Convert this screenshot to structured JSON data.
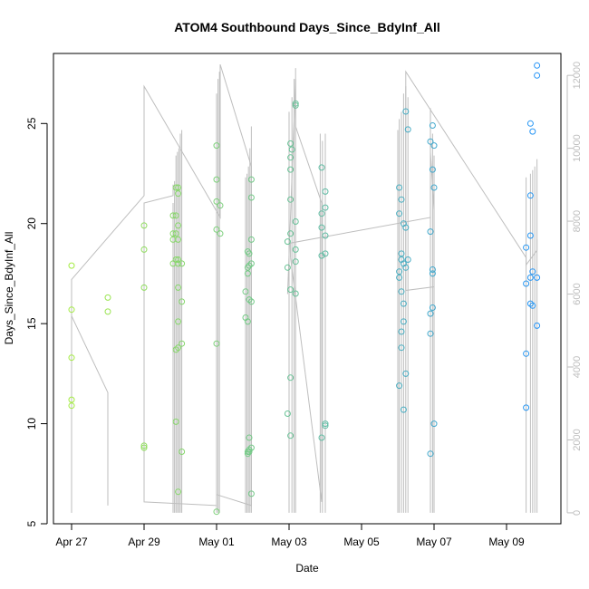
{
  "chart_data": {
    "type": "scatter",
    "title": "ATOM4 Southbound Days_Since_BdyInf_All",
    "xlabel": "Date",
    "ylabel": "Days_Since_BdyInf_All",
    "xlim": [
      "2017-04-26 12:00",
      "2017-05-10 12:00"
    ],
    "ylim": [
      5.0,
      28.5
    ],
    "y2lim": [
      -300,
      12600
    ],
    "x_ticks": [
      {
        "date": "2017-04-27",
        "label": "Apr 27"
      },
      {
        "date": "2017-04-29",
        "label": "Apr 29"
      },
      {
        "date": "2017-05-01",
        "label": "May 01"
      },
      {
        "date": "2017-05-03",
        "label": "May 03"
      },
      {
        "date": "2017-05-05",
        "label": "May 05"
      },
      {
        "date": "2017-05-07",
        "label": "May 07"
      },
      {
        "date": "2017-05-09",
        "label": "May 09"
      }
    ],
    "y_ticks": [
      5,
      10,
      15,
      20,
      25
    ],
    "y2_ticks": [
      0,
      2000,
      4000,
      6000,
      8000,
      10000,
      12000
    ],
    "grid": false,
    "legend": "none",
    "colors": {
      "points_start": "#a8ee3a",
      "points_end": "#1e90ff",
      "secondary_line": "#bebebe",
      "axis": "#000000",
      "secondary_axis": "#bebebe"
    },
    "points": [
      {
        "x": "2017-04-27 00:00",
        "y": 17.9
      },
      {
        "x": "2017-04-27 00:00",
        "y": 15.7
      },
      {
        "x": "2017-04-27 00:00",
        "y": 13.3
      },
      {
        "x": "2017-04-27 00:00",
        "y": 11.2
      },
      {
        "x": "2017-04-27 00:00",
        "y": 10.9
      },
      {
        "x": "2017-04-28 00:00",
        "y": 16.3
      },
      {
        "x": "2017-04-28 00:00",
        "y": 15.6
      },
      {
        "x": "2017-04-29 00:00",
        "y": 19.9
      },
      {
        "x": "2017-04-29 00:00",
        "y": 18.7
      },
      {
        "x": "2017-04-29 00:00",
        "y": 16.8
      },
      {
        "x": "2017-04-29 00:00",
        "y": 8.9
      },
      {
        "x": "2017-04-29 00:00",
        "y": 8.8
      },
      {
        "x": "2017-04-29 19:12",
        "y": 20.4
      },
      {
        "x": "2017-04-29 19:12",
        "y": 19.5
      },
      {
        "x": "2017-04-29 19:12",
        "y": 19.2
      },
      {
        "x": "2017-04-29 19:12",
        "y": 18.0
      },
      {
        "x": "2017-04-29 21:07",
        "y": 21.8
      },
      {
        "x": "2017-04-29 21:07",
        "y": 20.4
      },
      {
        "x": "2017-04-29 21:07",
        "y": 19.5
      },
      {
        "x": "2017-04-29 21:07",
        "y": 18.2
      },
      {
        "x": "2017-04-29 21:07",
        "y": 13.7
      },
      {
        "x": "2017-04-29 21:07",
        "y": 10.1
      },
      {
        "x": "2017-04-29 22:33",
        "y": 21.8
      },
      {
        "x": "2017-04-29 22:33",
        "y": 21.5
      },
      {
        "x": "2017-04-29 22:33",
        "y": 19.9
      },
      {
        "x": "2017-04-29 22:33",
        "y": 19.2
      },
      {
        "x": "2017-04-29 22:33",
        "y": 18.2
      },
      {
        "x": "2017-04-29 22:33",
        "y": 18.0
      },
      {
        "x": "2017-04-29 22:33",
        "y": 16.8
      },
      {
        "x": "2017-04-29 22:33",
        "y": 15.1
      },
      {
        "x": "2017-04-29 22:33",
        "y": 13.8
      },
      {
        "x": "2017-04-29 22:33",
        "y": 6.6
      },
      {
        "x": "2017-04-30 00:58",
        "y": 18.0
      },
      {
        "x": "2017-04-30 00:58",
        "y": 16.1
      },
      {
        "x": "2017-04-30 00:58",
        "y": 14.0
      },
      {
        "x": "2017-04-30 00:58",
        "y": 8.6
      },
      {
        "x": "2017-05-01 00:00",
        "y": 23.9
      },
      {
        "x": "2017-05-01 00:00",
        "y": 22.2
      },
      {
        "x": "2017-05-01 00:00",
        "y": 21.1
      },
      {
        "x": "2017-05-01 00:00",
        "y": 19.7
      },
      {
        "x": "2017-05-01 00:00",
        "y": 14.0
      },
      {
        "x": "2017-05-01 00:00",
        "y": 5.6
      },
      {
        "x": "2017-05-01 02:24",
        "y": 20.9
      },
      {
        "x": "2017-05-01 02:24",
        "y": 19.5
      },
      {
        "x": "2017-05-01 19:12",
        "y": 16.6
      },
      {
        "x": "2017-05-01 19:12",
        "y": 15.3
      },
      {
        "x": "2017-05-01 20:38",
        "y": 18.6
      },
      {
        "x": "2017-05-01 20:38",
        "y": 17.8
      },
      {
        "x": "2017-05-01 20:38",
        "y": 17.5
      },
      {
        "x": "2017-05-01 20:38",
        "y": 15.1
      },
      {
        "x": "2017-05-01 20:38",
        "y": 8.6
      },
      {
        "x": "2017-05-01 20:38",
        "y": 8.5
      },
      {
        "x": "2017-05-01 21:36",
        "y": 18.5
      },
      {
        "x": "2017-05-01 21:36",
        "y": 17.9
      },
      {
        "x": "2017-05-01 21:36",
        "y": 16.2
      },
      {
        "x": "2017-05-01 21:36",
        "y": 9.3
      },
      {
        "x": "2017-05-01 21:36",
        "y": 8.7
      },
      {
        "x": "2017-05-01 21:36",
        "y": 8.6
      },
      {
        "x": "2017-05-01 23:02",
        "y": 22.2
      },
      {
        "x": "2017-05-01 23:02",
        "y": 21.3
      },
      {
        "x": "2017-05-01 23:02",
        "y": 19.2
      },
      {
        "x": "2017-05-01 23:02",
        "y": 18.0
      },
      {
        "x": "2017-05-01 23:02",
        "y": 16.1
      },
      {
        "x": "2017-05-01 23:02",
        "y": 8.8
      },
      {
        "x": "2017-05-01 23:02",
        "y": 6.5
      },
      {
        "x": "2017-05-02 23:02",
        "y": 19.1
      },
      {
        "x": "2017-05-02 23:02",
        "y": 17.8
      },
      {
        "x": "2017-05-02 23:02",
        "y": 10.5
      },
      {
        "x": "2017-05-03 00:58",
        "y": 24.0
      },
      {
        "x": "2017-05-03 00:58",
        "y": 23.3
      },
      {
        "x": "2017-05-03 00:58",
        "y": 22.7
      },
      {
        "x": "2017-05-03 00:58",
        "y": 21.2
      },
      {
        "x": "2017-05-03 00:58",
        "y": 19.5
      },
      {
        "x": "2017-05-03 00:58",
        "y": 16.7
      },
      {
        "x": "2017-05-03 00:58",
        "y": 12.3
      },
      {
        "x": "2017-05-03 00:58",
        "y": 9.4
      },
      {
        "x": "2017-05-03 01:55",
        "y": 23.7
      },
      {
        "x": "2017-05-03 04:19",
        "y": 26.0
      },
      {
        "x": "2017-05-03 04:19",
        "y": 25.9
      },
      {
        "x": "2017-05-03 04:19",
        "y": 20.1
      },
      {
        "x": "2017-05-03 04:19",
        "y": 18.7
      },
      {
        "x": "2017-05-03 04:19",
        "y": 18.1
      },
      {
        "x": "2017-05-03 04:19",
        "y": 16.5
      },
      {
        "x": "2017-05-03 21:36",
        "y": 22.8
      },
      {
        "x": "2017-05-03 21:36",
        "y": 20.5
      },
      {
        "x": "2017-05-03 21:36",
        "y": 19.8
      },
      {
        "x": "2017-05-03 21:36",
        "y": 18.4
      },
      {
        "x": "2017-05-03 21:36",
        "y": 9.3
      },
      {
        "x": "2017-05-04 00:00",
        "y": 21.6
      },
      {
        "x": "2017-05-04 00:00",
        "y": 20.8
      },
      {
        "x": "2017-05-04 00:00",
        "y": 19.4
      },
      {
        "x": "2017-05-04 00:00",
        "y": 18.5
      },
      {
        "x": "2017-05-04 00:00",
        "y": 10.0
      },
      {
        "x": "2017-05-04 00:00",
        "y": 9.9
      },
      {
        "x": "2017-05-06 00:58",
        "y": 21.8
      },
      {
        "x": "2017-05-06 00:58",
        "y": 20.5
      },
      {
        "x": "2017-05-06 00:58",
        "y": 17.6
      },
      {
        "x": "2017-05-06 00:58",
        "y": 17.3
      },
      {
        "x": "2017-05-06 00:58",
        "y": 11.9
      },
      {
        "x": "2017-05-06 02:24",
        "y": 21.2
      },
      {
        "x": "2017-05-06 02:24",
        "y": 18.5
      },
      {
        "x": "2017-05-06 02:24",
        "y": 18.2
      },
      {
        "x": "2017-05-06 02:24",
        "y": 16.6
      },
      {
        "x": "2017-05-06 02:24",
        "y": 14.6
      },
      {
        "x": "2017-05-06 02:24",
        "y": 13.8
      },
      {
        "x": "2017-05-06 03:50",
        "y": 20.0
      },
      {
        "x": "2017-05-06 03:50",
        "y": 18.0
      },
      {
        "x": "2017-05-06 03:50",
        "y": 16.0
      },
      {
        "x": "2017-05-06 03:50",
        "y": 15.1
      },
      {
        "x": "2017-05-06 03:50",
        "y": 10.7
      },
      {
        "x": "2017-05-06 05:17",
        "y": 25.6
      },
      {
        "x": "2017-05-06 05:17",
        "y": 19.8
      },
      {
        "x": "2017-05-06 05:17",
        "y": 17.8
      },
      {
        "x": "2017-05-06 05:17",
        "y": 12.5
      },
      {
        "x": "2017-05-06 06:43",
        "y": 24.7
      },
      {
        "x": "2017-05-06 06:43",
        "y": 18.2
      },
      {
        "x": "2017-05-06 21:36",
        "y": 24.1
      },
      {
        "x": "2017-05-06 21:36",
        "y": 19.6
      },
      {
        "x": "2017-05-06 21:36",
        "y": 15.5
      },
      {
        "x": "2017-05-06 21:36",
        "y": 14.5
      },
      {
        "x": "2017-05-06 21:36",
        "y": 8.5
      },
      {
        "x": "2017-05-06 23:02",
        "y": 24.9
      },
      {
        "x": "2017-05-06 23:02",
        "y": 22.7
      },
      {
        "x": "2017-05-06 23:02",
        "y": 17.7
      },
      {
        "x": "2017-05-06 23:02",
        "y": 17.5
      },
      {
        "x": "2017-05-06 23:02",
        "y": 15.8
      },
      {
        "x": "2017-05-07 00:00",
        "y": 23.9
      },
      {
        "x": "2017-05-07 00:00",
        "y": 21.8
      },
      {
        "x": "2017-05-07 00:00",
        "y": 10.0
      },
      {
        "x": "2017-05-09 12:58",
        "y": 18.8
      },
      {
        "x": "2017-05-09 12:58",
        "y": 17.0
      },
      {
        "x": "2017-05-09 12:58",
        "y": 13.5
      },
      {
        "x": "2017-05-09 12:58",
        "y": 10.8
      },
      {
        "x": "2017-05-09 15:50",
        "y": 25.0
      },
      {
        "x": "2017-05-09 15:50",
        "y": 21.4
      },
      {
        "x": "2017-05-09 15:50",
        "y": 19.4
      },
      {
        "x": "2017-05-09 15:50",
        "y": 17.3
      },
      {
        "x": "2017-05-09 15:50",
        "y": 16.0
      },
      {
        "x": "2017-05-09 17:17",
        "y": 24.6
      },
      {
        "x": "2017-05-09 17:17",
        "y": 17.6
      },
      {
        "x": "2017-05-09 17:17",
        "y": 15.9
      },
      {
        "x": "2017-05-09 20:10",
        "y": 27.9
      },
      {
        "x": "2017-05-09 20:10",
        "y": 27.4
      },
      {
        "x": "2017-05-09 20:10",
        "y": 17.3
      },
      {
        "x": "2017-05-09 20:10",
        "y": 14.9
      }
    ],
    "secondary_line": [
      [
        "2017-04-27 00:00",
        0
      ],
      [
        "2017-04-27 00:00",
        6400
      ],
      [
        "2017-04-29 00:00",
        8700
      ],
      [
        "2017-04-29 00:00",
        8800
      ],
      [
        "2017-04-29 00:00",
        11700
      ],
      [
        "2017-05-01 02:24",
        8100
      ],
      [
        "2017-05-01 02:24",
        12300
      ],
      [
        "2017-05-01 23:02",
        9500
      ],
      [
        "2017-05-01 23:02",
        200
      ],
      [
        "2017-05-01 00:00",
        500
      ],
      [
        "2017-05-01 00:00",
        200
      ],
      [
        "2017-04-29 00:00",
        300
      ],
      [
        "2017-04-29 00:00",
        8500
      ],
      [
        "2017-04-29 19:12",
        8700
      ],
      [
        "2017-04-29 19:12",
        9000
      ]
    ],
    "secondary_line_2": [
      [
        "2017-04-27 00:00",
        5400
      ],
      [
        "2017-04-28 00:00",
        3300
      ],
      [
        "2017-04-28 00:00",
        200
      ]
    ],
    "secondary_line_3": [
      [
        "2017-05-03 00:58",
        7000
      ],
      [
        "2017-05-03 00:58",
        7400
      ],
      [
        "2017-05-06 21:36",
        8100
      ],
      [
        "2017-05-06 21:36",
        9900
      ],
      [
        "2017-05-07 00:00",
        8300
      ],
      [
        "2017-05-07 00:00",
        6200
      ],
      [
        "2017-05-06 05:17",
        6100
      ],
      [
        "2017-05-06 05:17",
        12100
      ],
      [
        "2017-05-09 12:58",
        7000
      ],
      [
        "2017-05-09 12:58",
        6800
      ],
      [
        "2017-05-09 20:10",
        7200
      ],
      [
        "2017-05-09 20:10",
        7500
      ]
    ],
    "secondary_line_4": [
      [
        "2017-05-02 23:02",
        6000
      ],
      [
        "2017-05-03 04:19",
        11900
      ],
      [
        "2017-05-03 04:19",
        10600
      ],
      [
        "2017-05-03 21:36",
        8500
      ],
      [
        "2017-05-03 21:36",
        300
      ],
      [
        "2017-05-03 00:58",
        7000
      ]
    ],
    "secondary_spikes": [
      {
        "x": "2017-04-27 00:00",
        "top": 6300
      },
      {
        "x": "2017-04-29 19:12",
        "top": 8500
      },
      {
        "x": "2017-04-29 20:10",
        "top": 9100
      },
      {
        "x": "2017-04-29 21:07",
        "top": 9800
      },
      {
        "x": "2017-04-29 22:05",
        "top": 9900
      },
      {
        "x": "2017-04-29 23:02",
        "top": 10000
      },
      {
        "x": "2017-04-30 00:00",
        "top": 10400
      },
      {
        "x": "2017-04-30 00:58",
        "top": 10500
      },
      {
        "x": "2017-05-01 00:00",
        "top": 11500
      },
      {
        "x": "2017-05-01 00:58",
        "top": 11900
      },
      {
        "x": "2017-05-01 01:55",
        "top": 12100
      },
      {
        "x": "2017-05-01 19:12",
        "top": 9200
      },
      {
        "x": "2017-05-01 20:10",
        "top": 9300
      },
      {
        "x": "2017-05-01 21:07",
        "top": 9500
      },
      {
        "x": "2017-05-01 22:05",
        "top": 10000
      },
      {
        "x": "2017-05-01 23:02",
        "top": 10600
      },
      {
        "x": "2017-05-03 00:00",
        "top": 11000
      },
      {
        "x": "2017-05-03 01:55",
        "top": 11400
      },
      {
        "x": "2017-05-03 03:22",
        "top": 11900
      },
      {
        "x": "2017-05-03 04:19",
        "top": 12200
      },
      {
        "x": "2017-05-03 20:38",
        "top": 10400
      },
      {
        "x": "2017-05-03 22:05",
        "top": 10200
      },
      {
        "x": "2017-05-04 00:00",
        "top": 10400
      },
      {
        "x": "2017-05-06 00:00",
        "top": 10500
      },
      {
        "x": "2017-05-06 00:58",
        "top": 10800
      },
      {
        "x": "2017-05-06 02:24",
        "top": 11000
      },
      {
        "x": "2017-05-06 03:50",
        "top": 11500
      },
      {
        "x": "2017-05-06 05:17",
        "top": 11700
      },
      {
        "x": "2017-05-06 06:43",
        "top": 11400
      },
      {
        "x": "2017-05-06 21:36",
        "top": 11100
      },
      {
        "x": "2017-05-06 23:02",
        "top": 10400
      },
      {
        "x": "2017-05-07 00:00",
        "top": 9800
      },
      {
        "x": "2017-05-09 12:58",
        "top": 9200
      },
      {
        "x": "2017-05-09 15:50",
        "top": 9300
      },
      {
        "x": "2017-05-09 17:17",
        "top": 9400
      },
      {
        "x": "2017-05-09 18:43",
        "top": 9500
      },
      {
        "x": "2017-05-09 20:10",
        "top": 9700
      }
    ]
  }
}
